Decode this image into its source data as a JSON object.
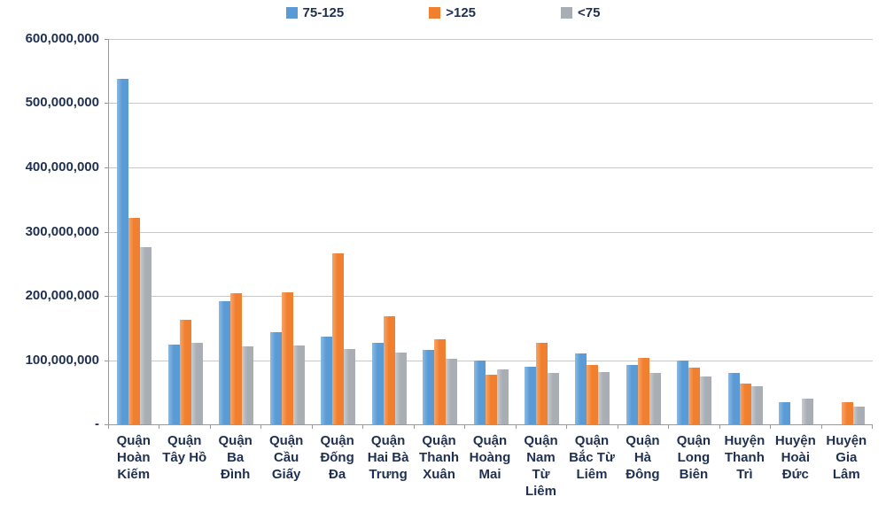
{
  "legend": [
    {
      "label": "75-125",
      "color": "#5B9BD5"
    },
    {
      "label": ">125",
      "color": "#F0802F"
    },
    {
      "label": "<75",
      "color": "#A9AEB4"
    }
  ],
  "chart_data": {
    "type": "bar",
    "title": "",
    "xlabel": "",
    "ylabel": "",
    "ylim": [
      0,
      600000000
    ],
    "ytick_interval": 100000000,
    "ytick_labels": [
      "600,000,000",
      "500,000,000",
      "400,000,000",
      "300,000,000",
      "200,000,000",
      "100,000,000",
      "-"
    ],
    "grid": true,
    "legend_position": "top",
    "categories": [
      "Quận Hoàn Kiếm",
      "Quận Tây Hồ",
      "Quận Ba Đình",
      "Quận Cầu Giấy",
      "Quận Đống Đa",
      "Quận Hai Bà Trưng",
      "Quận Thanh Xuân",
      "Quận Hoàng Mai",
      "Quận Nam Từ Liêm",
      "Quận Bắc Từ Liêm",
      "Quận Hà Đông",
      "Quận Long Biên",
      "Huyện Thanh Trì",
      "Huyện Hoài Đức",
      "Huyện Gia Lâm"
    ],
    "category_lines": [
      [
        "Quận",
        "Hoàn",
        "Kiếm"
      ],
      [
        "Quận",
        "Tây Hồ"
      ],
      [
        "Quận",
        "Ba",
        "Đình"
      ],
      [
        "Quận",
        "Cầu",
        "Giấy"
      ],
      [
        "Quận",
        "Đống",
        "Đa"
      ],
      [
        "Quận",
        "Hai Bà",
        "Trưng"
      ],
      [
        "Quận",
        "Thanh",
        "Xuân"
      ],
      [
        "Quận",
        "Hoàng",
        "Mai"
      ],
      [
        "Quận",
        "Nam",
        "Từ",
        "Liêm"
      ],
      [
        "Quận",
        "Bắc Từ",
        "Liêm"
      ],
      [
        "Quận",
        "Hà",
        "Đông"
      ],
      [
        "Quận",
        "Long",
        "Biên"
      ],
      [
        "Huyện",
        "Thanh",
        "Trì"
      ],
      [
        "Huyện",
        "Hoài",
        "Đức"
      ],
      [
        "Huyện",
        "Gia",
        "Lâm"
      ]
    ],
    "series": [
      {
        "name": "75-125",
        "color": "#5B9BD5",
        "color_light": "#8ABBE4",
        "values": [
          538000000,
          124000000,
          192000000,
          143000000,
          136000000,
          127000000,
          116000000,
          100000000,
          90000000,
          111000000,
          92000000,
          99000000,
          80000000,
          35000000,
          0
        ]
      },
      {
        "name": ">125",
        "color": "#F0802F",
        "color_light": "#F7A66B",
        "values": [
          322000000,
          163000000,
          204000000,
          205000000,
          266000000,
          168000000,
          132000000,
          77000000,
          127000000,
          93000000,
          104000000,
          88000000,
          64000000,
          0,
          35000000
        ]
      },
      {
        "name": "<75",
        "color": "#A9AEB4",
        "color_light": "#C9CCD0",
        "values": [
          276000000,
          127000000,
          122000000,
          123000000,
          117000000,
          112000000,
          102000000,
          85000000,
          80000000,
          81000000,
          80000000,
          75000000,
          60000000,
          40000000,
          28000000
        ]
      }
    ]
  }
}
